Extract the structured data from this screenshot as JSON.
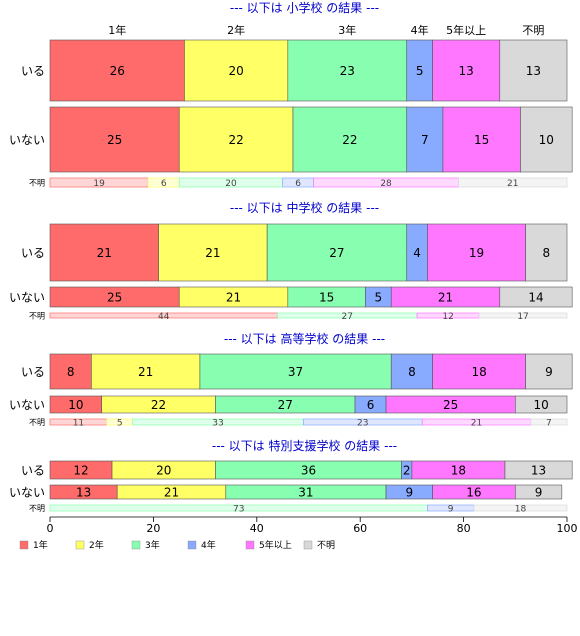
{
  "chart_data": {
    "type": "bar",
    "orientation": "horizontal",
    "stacked": "percent",
    "xlim": [
      0,
      100
    ],
    "xticks": [
      "0",
      "20",
      "40",
      "60",
      "80",
      "100"
    ],
    "categories": [
      "1年",
      "2年",
      "3年",
      "4年",
      "5年以上",
      "不明"
    ],
    "colors": [
      "#ff6b6b",
      "#ffff66",
      "#88ffb0",
      "#88aaff",
      "#ff77ff",
      "#d9d9d9"
    ],
    "legend": {
      "position": "bottom-left",
      "labels": [
        "1年",
        "2年",
        "3年",
        "4年",
        "5年以上",
        "不明"
      ]
    },
    "panels": [
      {
        "title": "--- 以下は 小学校 の結果 ---",
        "rows": [
          {
            "label": "いる",
            "values": [
              26,
              20,
              23,
              5,
              13,
              13
            ]
          },
          {
            "label": "いない",
            "values": [
              25,
              22,
              22,
              7,
              15,
              10
            ]
          },
          {
            "label": "不明",
            "values": [
              19,
              6,
              20,
              6,
              28,
              21
            ]
          }
        ]
      },
      {
        "title": "--- 以下は 中学校 の結果 ---",
        "rows": [
          {
            "label": "いる",
            "values": [
              21,
              21,
              27,
              4,
              19,
              8
            ]
          },
          {
            "label": "いない",
            "values": [
              25,
              21,
              15,
              5,
              21,
              14
            ]
          },
          {
            "label": "不明",
            "values": [
              44,
              0,
              27,
              0,
              12,
              17
            ]
          }
        ]
      },
      {
        "title": "--- 以下は 高等学校 の結果 ---",
        "rows": [
          {
            "label": "いる",
            "values": [
              8,
              21,
              37,
              8,
              18,
              9
            ]
          },
          {
            "label": "いない",
            "values": [
              10,
              22,
              27,
              6,
              25,
              10
            ]
          },
          {
            "label": "不明",
            "values": [
              11,
              5,
              33,
              23,
              21,
              7
            ]
          }
        ]
      },
      {
        "title": "--- 以下は 特別支援学校 の結果 ---",
        "rows": [
          {
            "label": "いる",
            "values": [
              12,
              20,
              36,
              2,
              18,
              13
            ]
          },
          {
            "label": "いない",
            "values": [
              13,
              21,
              31,
              9,
              16,
              9
            ]
          },
          {
            "label": "不明",
            "values": [
              0,
              0,
              73,
              9,
              0,
              18
            ]
          }
        ]
      }
    ]
  }
}
